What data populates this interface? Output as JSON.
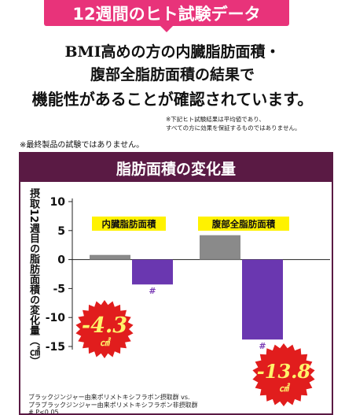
{
  "banner": {
    "text": "12週間のヒト試験データ"
  },
  "headline": {
    "line1": "BMI高めの方の内臓脂肪面積・",
    "line2": "腹部全脂肪面積の結果で",
    "line3": "機能性があることが確認されています。"
  },
  "footnotes": {
    "line1": "※下記ヒト試験結果は平均値であり、",
    "line2": "すべての方に効果を保証するものではありません。"
  },
  "disclaimer": "※最終製品の試験ではありません。",
  "legend_note": {
    "line1": "ブラックジンジャー由来ポリメトキシフラボン摂取群 vs.",
    "line2": "プラブラックジンジャー由来ポリメトキシフラボン非摂取群",
    "line3": "# P<0.05"
  },
  "colors": {
    "banner": "#e8337a",
    "title_bar": "#5a1a44",
    "bar_gray": "#8a8a8a",
    "bar_purple": "#6a37b0",
    "label_box": "#fff200",
    "burst": "#e11d1d",
    "burst_text": "#fff36b",
    "hash": "#7a3bb5"
  },
  "chart_data": {
    "type": "bar",
    "title": "脂肪面積の変化量",
    "ylabel": "摂取12週目の脂肪面積の変化量（㎠）",
    "ylim": [
      -15,
      10
    ],
    "yticks": [
      10,
      5,
      0,
      -5,
      -10,
      -15
    ],
    "grid": false,
    "groups": [
      {
        "label": "内臓脂肪面積",
        "values": [
          0.8,
          -4.3
        ],
        "significance": [
          null,
          "#"
        ],
        "callout": {
          "value": "-4.3",
          "unit": "㎠"
        }
      },
      {
        "label": "腹部全脂肪面積",
        "values": [
          4.2,
          -13.8
        ],
        "significance": [
          null,
          "#"
        ],
        "callout": {
          "value": "-13.8",
          "unit": "㎠"
        }
      }
    ]
  }
}
